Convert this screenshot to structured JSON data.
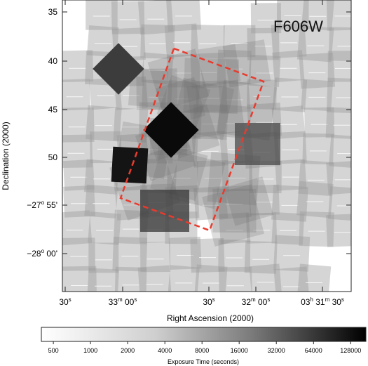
{
  "chart_data": {
    "type": "heatmap",
    "title": "F606W",
    "xlabel": "Right Ascension (2000)",
    "ylabel": "Declination (2000)",
    "x_tick_labels": [
      {
        "main": "30",
        "sup": "s"
      },
      {
        "main": "33",
        "sup": "m",
        "tail": " 00",
        "sup2": "s"
      },
      {
        "main": "30",
        "sup": "s"
      },
      {
        "main": "32",
        "sup": "m",
        "tail": " 00",
        "sup2": "s"
      },
      {
        "main": "03",
        "sup": "h",
        "tail": " 31",
        "sup2": "m",
        "tail2": " 30",
        "sup3": "s"
      }
    ],
    "y_tick_labels": [
      {
        "main": "35"
      },
      {
        "main": "40"
      },
      {
        "main": "45"
      },
      {
        "main": "50"
      },
      {
        "main": "−27",
        "sup": "o",
        "tail": " 55'"
      },
      {
        "main": "−28",
        "sup": "o",
        "tail": " 00'"
      }
    ],
    "colorbar": {
      "label": "Exposure Time (seconds)",
      "scale": "log",
      "ticks": [
        "500",
        "1000",
        "2000",
        "4000",
        "8000",
        "16000",
        "32000",
        "64000",
        "128000"
      ],
      "range": [
        400,
        170000
      ],
      "colors": [
        "#ffffff",
        "#000000"
      ]
    },
    "footprint_outline": {
      "style": "dashed",
      "color": "#e83b2e"
    }
  }
}
